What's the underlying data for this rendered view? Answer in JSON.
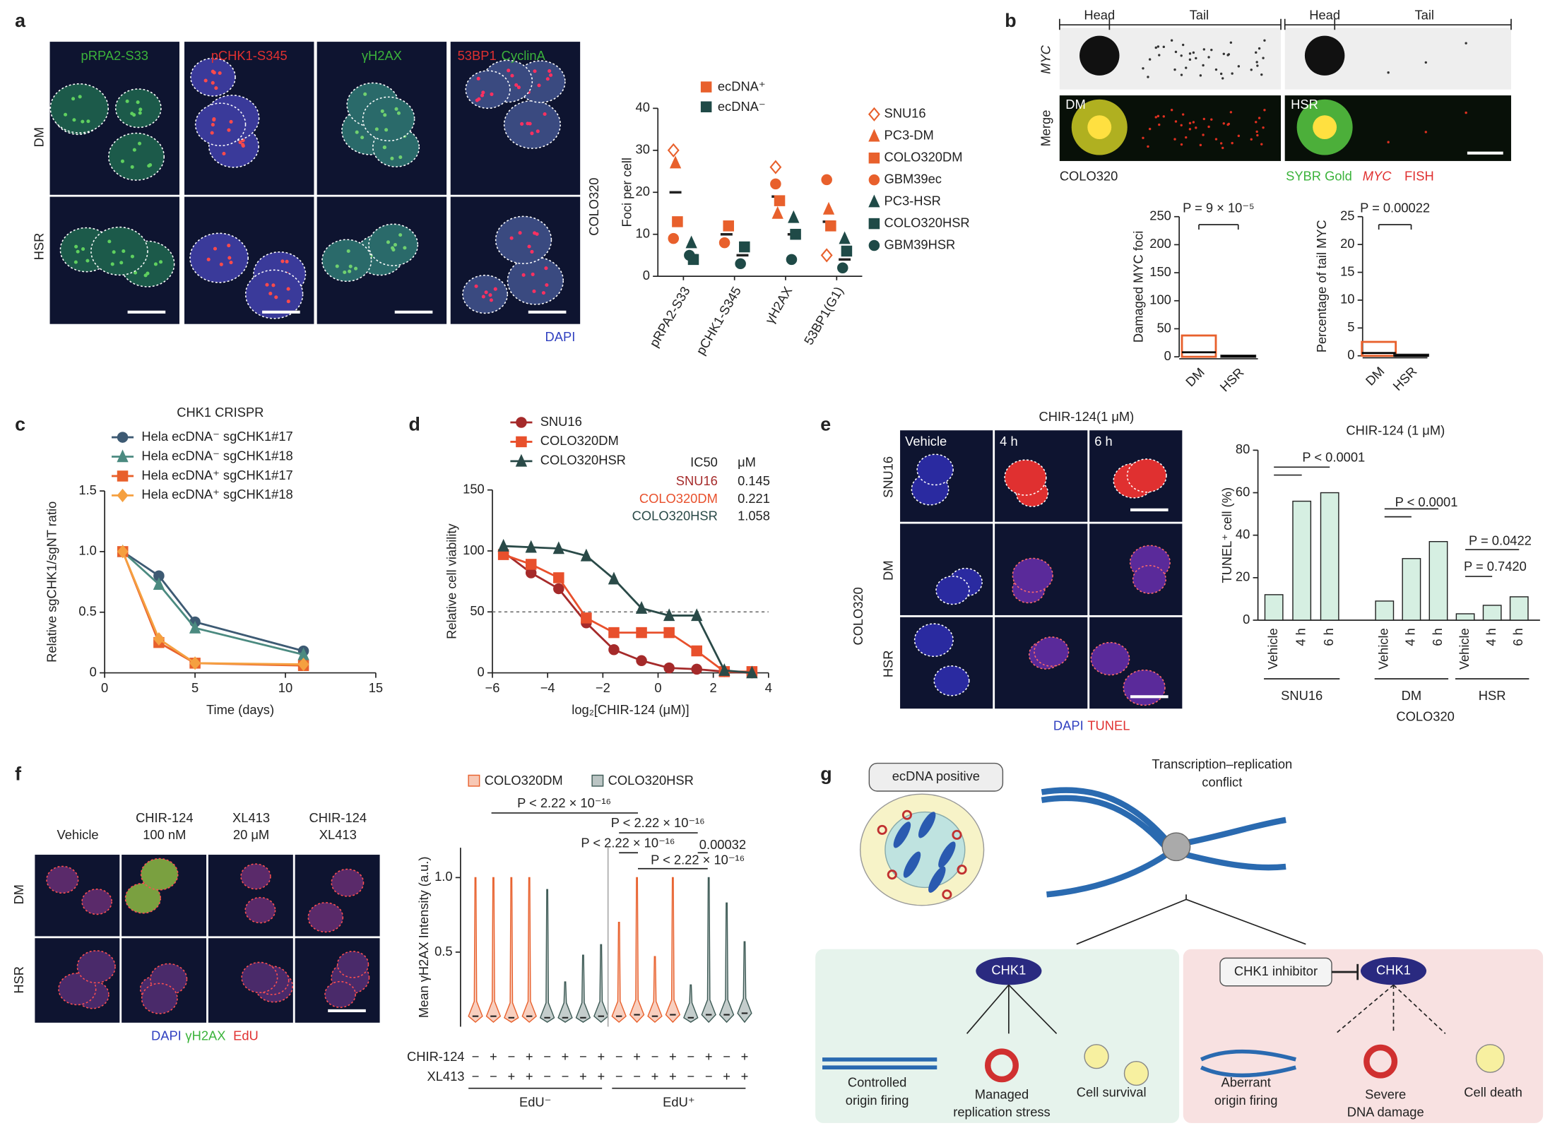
{
  "panel_labels": [
    "a",
    "b",
    "c",
    "d",
    "e",
    "f",
    "g"
  ],
  "panel_a_images": {
    "stains": [
      "pRPA2-S33",
      "pCHK1-S345",
      "γH2AX",
      "53BP1",
      "CyclinA"
    ],
    "rows": [
      "DM",
      "HSR"
    ],
    "cell_line": "COLO320",
    "counterstain": "DAPI"
  },
  "panel_b_images": {
    "regions": [
      "Head",
      "Tail",
      "Head",
      "Tail"
    ],
    "rows": [
      "MYC",
      "Merge"
    ],
    "samples": [
      "DM",
      "HSR"
    ],
    "cell_line": "COLO320",
    "stains": [
      "SYBR Gold",
      "MYC",
      "FISH"
    ]
  },
  "panel_e_images": {
    "title": "CHIR-124(1 μM)",
    "columns": [
      "Vehicle",
      "4 h",
      "6 h"
    ],
    "rows": [
      "SNU16",
      "DM",
      "HSR"
    ],
    "cell_line": "COLO320",
    "stains": [
      "DAPI",
      "TUNEL"
    ]
  },
  "panel_f_images": {
    "columns": [
      [
        "Vehicle"
      ],
      [
        "CHIR-124",
        "100 nM"
      ],
      [
        "XL413",
        "20 μM"
      ],
      [
        "CHIR-124",
        "XL413"
      ]
    ],
    "rows": [
      "DM",
      "HSR"
    ],
    "stains": [
      "DAPI",
      "γH2AX",
      "EdU"
    ]
  },
  "diagram": {
    "ecdna_label": "ecDNA positive",
    "conflict": [
      "Transcription–replication",
      "conflict"
    ],
    "survival_panel": {
      "protein": "CHK1",
      "outcomes": [
        [
          "Controlled",
          "origin firing"
        ],
        [
          "Managed",
          "replication stress"
        ],
        [
          "Cell survival"
        ]
      ]
    },
    "inhibition_panel": {
      "inhibitor": "CHK1 inhibitor",
      "protein": "CHK1",
      "outcomes": [
        [
          "Aberrant",
          "origin firing"
        ],
        [
          "Severe",
          "DNA damage"
        ],
        [
          "Cell death"
        ]
      ]
    }
  },
  "chart_data": [
    {
      "type": "scatter",
      "ylabel": "Foci per cell",
      "categories": [
        "pRPA2-S33",
        "pCHK1-S345",
        "γH2AX",
        "53BP1(G1)"
      ],
      "ylim": [
        0,
        40
      ],
      "yticks": [
        0,
        10,
        20,
        30,
        40
      ],
      "groups": [
        {
          "name": "ecDNA⁺",
          "color": "#e8602c",
          "means": [
            20,
            10,
            19,
            13
          ]
        },
        {
          "name": "ecDNA⁻",
          "color": "#1f4a47",
          "means": [
            5,
            5,
            10,
            4
          ]
        }
      ],
      "series": [
        {
          "name": "SNU16",
          "color": "#e8602c",
          "marker": "open-diamond",
          "values": [
            30,
            null,
            26,
            5
          ]
        },
        {
          "name": "PC3-DM",
          "color": "#e8602c",
          "marker": "triangle",
          "values": [
            27,
            null,
            15,
            16
          ]
        },
        {
          "name": "COLO320DM",
          "color": "#e8602c",
          "marker": "square",
          "values": [
            13,
            12,
            18,
            12
          ]
        },
        {
          "name": "GBM39ec",
          "color": "#e8602c",
          "marker": "circle",
          "values": [
            9,
            8,
            22,
            23
          ]
        },
        {
          "name": "PC3-HSR",
          "color": "#1f4a47",
          "marker": "triangle",
          "values": [
            8,
            null,
            14,
            9
          ]
        },
        {
          "name": "COLO320HSR",
          "color": "#1f4a47",
          "marker": "square",
          "values": [
            4,
            7,
            10,
            6
          ]
        },
        {
          "name": "GBM39HSR",
          "color": "#1f4a47",
          "marker": "circle",
          "values": [
            5,
            3,
            4,
            2
          ]
        }
      ]
    },
    {
      "type": "box",
      "ylabel": "Damaged MYC foci",
      "categories": [
        "DM",
        "HSR"
      ],
      "colors": [
        "#e8602c",
        "#222222"
      ],
      "q1": [
        0,
        0
      ],
      "median": [
        8,
        1
      ],
      "q3": [
        38,
        2
      ],
      "ylim": [
        0,
        250
      ],
      "yticks": [
        0,
        50,
        100,
        150,
        200,
        250
      ],
      "annotation": "P = 9 × 10⁻⁵"
    },
    {
      "type": "box",
      "ylabel": "Percentage of tail MYC",
      "categories": [
        "DM",
        "HSR"
      ],
      "colors": [
        "#e8602c",
        "#222222"
      ],
      "q1": [
        0,
        0
      ],
      "median": [
        0.5,
        0
      ],
      "q3": [
        2.5,
        0.2
      ],
      "ylim": [
        0,
        25
      ],
      "yticks": [
        0,
        5,
        10,
        15,
        20,
        25
      ],
      "annotation": "P = 0.00022"
    },
    {
      "type": "line",
      "title": "CHK1 CRISPR",
      "xlabel": "Time (days)",
      "ylabel": "Relative sgCHK1/sgNT ratio",
      "x": [
        1,
        3,
        5,
        11
      ],
      "xlim": [
        0,
        15
      ],
      "xticks": [
        0,
        5,
        10,
        15
      ],
      "ylim": [
        0,
        1.5
      ],
      "yticks": [
        0,
        0.5,
        {
          "value": 1,
          "label": "1.0"
        },
        1.5
      ],
      "series": [
        {
          "name": "Hela ecDNA⁻ sgCHK1#17",
          "color": "#3d5a73",
          "marker": "circle",
          "values": [
            1,
            0.8,
            0.42,
            0.18
          ]
        },
        {
          "name": "Hela ecDNA⁻ sgCHK1#18",
          "color": "#4b8a80",
          "marker": "triangle",
          "values": [
            1,
            0.73,
            0.37,
            0.15
          ]
        },
        {
          "name": "Hela ecDNA⁺ sgCHK1#17",
          "color": "#e8602c",
          "marker": "square",
          "values": [
            1,
            0.25,
            0.08,
            0.06
          ]
        },
        {
          "name": "Hela ecDNA⁺ sgCHK1#18",
          "color": "#f5a040",
          "marker": "diamond",
          "values": [
            1,
            0.28,
            0.08,
            0.07
          ]
        }
      ]
    },
    {
      "type": "line",
      "xlabel": "log₂[CHIR-124 (μM)]",
      "ylabel": "Relative cell viability",
      "x": [
        -5.6,
        -4.6,
        -3.6,
        -2.6,
        -1.6,
        -0.6,
        0.4,
        1.4,
        2.4,
        3.4
      ],
      "xlim": [
        -6,
        4
      ],
      "xticks": [
        {
          "value": -6,
          "label": "−6"
        },
        {
          "value": -4,
          "label": "−4"
        },
        {
          "value": -2,
          "label": "−2"
        },
        0,
        2,
        4
      ],
      "ylim": [
        0,
        150
      ],
      "yticks": [
        0,
        50,
        100,
        150
      ],
      "reference_line": 50,
      "ic50_header": [
        "IC50",
        "μM"
      ],
      "series": [
        {
          "name": "SNU16",
          "color": "#a52a2a",
          "marker": "circle",
          "values": [
            99,
            82,
            69,
            41,
            19,
            10,
            4,
            3,
            1,
            0
          ],
          "ic50": 0.145
        },
        {
          "name": "COLO320DM",
          "color": "#e8502c",
          "marker": "square",
          "values": [
            97,
            89,
            78,
            45,
            33,
            33,
            33,
            18,
            1,
            1
          ],
          "ic50": 0.221
        },
        {
          "name": "COLO320HSR",
          "color": "#2a4a48",
          "marker": "triangle",
          "values": [
            104,
            103,
            102,
            96,
            77,
            53,
            47,
            47,
            2,
            0
          ],
          "ic50": 1.058
        }
      ]
    },
    {
      "type": "bar",
      "title": "CHIR-124 (1 μM)",
      "ylabel": "TUNEL⁺ cell (%)",
      "categories": [
        "Vehicle",
        "4 h",
        "6 h",
        "Vehicle",
        "4 h",
        "6 h",
        "Vehicle",
        "4 h",
        "6 h"
      ],
      "values": [
        12,
        56,
        60,
        9,
        29,
        37,
        3,
        7,
        11
      ],
      "color": "#d6efe2",
      "ylim": [
        0,
        80
      ],
      "yticks": [
        0,
        20,
        40,
        60,
        80
      ],
      "groups": [
        "SNU16",
        "DM",
        "HSR"
      ],
      "group_note": "COLO320",
      "annotations": [
        "P < 0.0001",
        "P < 0.0001",
        "P = 0.0422",
        "P = 0.7420"
      ]
    },
    {
      "type": "violin",
      "ylabel": "Mean γH2AX Intensity (a.u.)",
      "ylim": [
        0,
        1.2
      ],
      "yticks": [
        0.5,
        {
          "value": 1,
          "label": "1.0"
        }
      ],
      "series": [
        {
          "name": "COLO320DM",
          "color": "#e8602c",
          "medians": [
            0.07,
            0.07,
            0.06,
            0.07,
            0.07,
            0.08,
            0.07,
            0.08
          ],
          "maxima": [
            1,
            1,
            1,
            1,
            0.7,
            1,
            0.47,
            1
          ]
        },
        {
          "name": "COLO320HSR",
          "color": "#3d5a55",
          "medians": [
            0.06,
            0.06,
            0.06,
            0.07,
            0.06,
            0.08,
            0.08,
            0.09
          ],
          "maxima": [
            0.92,
            0.3,
            0.48,
            0.55,
            0.28,
            1,
            0.83,
            0.57
          ]
        }
      ],
      "treatments": [
        {
          "name": "CHIR-124",
          "signs": [
            "−",
            "+",
            "−",
            "+",
            "−",
            "+",
            "−",
            "+",
            "−",
            "+",
            "−",
            "+",
            "−",
            "+",
            "−",
            "+"
          ]
        },
        {
          "name": "XL413",
          "signs": [
            "−",
            "−",
            "+",
            "+",
            "−",
            "−",
            "+",
            "+",
            "−",
            "−",
            "+",
            "+",
            "−",
            "−",
            "+",
            "+"
          ]
        }
      ],
      "groups": [
        "EdU⁻",
        "EdU⁺"
      ],
      "annotations": [
        "P < 2.22 × 10⁻¹⁶",
        "P < 2.22 × 10⁻¹⁶",
        "P < 2.22 × 10⁻¹⁶",
        "0.00032",
        "P < 2.22 × 10⁻¹⁶"
      ]
    }
  ]
}
